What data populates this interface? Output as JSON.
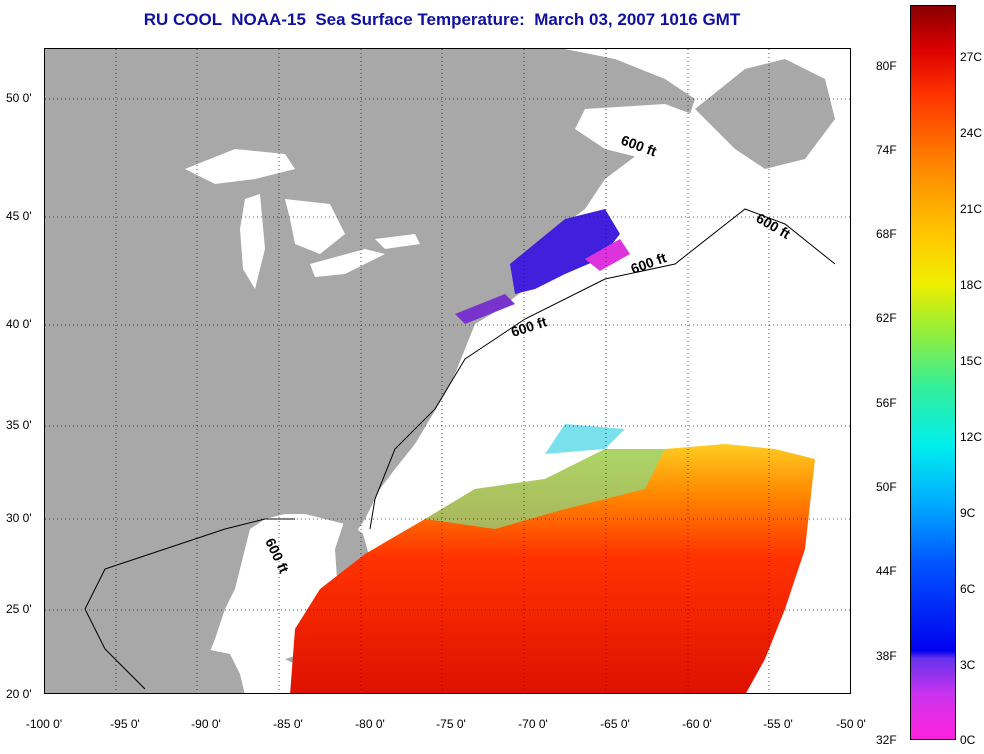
{
  "title": "RU COOL  NOAA-15  Sea Surface Temperature:  March 03, 2007 1016 GMT",
  "map": {
    "land_color": "#a8a8a8",
    "water_color": "#ffffff",
    "contour_label": "600 ft",
    "lat_labels": [
      "50 0'",
      "45 0'",
      "40 0'",
      "35 0'",
      "30 0'",
      "25 0'",
      "20 0'"
    ],
    "lon_labels": [
      "-100 0'",
      "-95 0'",
      "-90 0'",
      "-85 0'",
      "-80 0'",
      "-75 0'",
      "-70 0'",
      "-65 0'",
      "-60 0'",
      "-55 0'",
      "-50 0'"
    ]
  },
  "colorbar": {
    "fahrenheit_labels": [
      "80F",
      "74F",
      "68F",
      "62F",
      "56F",
      "50F",
      "44F",
      "38F",
      "32F"
    ],
    "celsius_labels": [
      "27C",
      "24C",
      "21C",
      "18C",
      "15C",
      "12C",
      "9C",
      "6C",
      "3C",
      "0C"
    ]
  }
}
